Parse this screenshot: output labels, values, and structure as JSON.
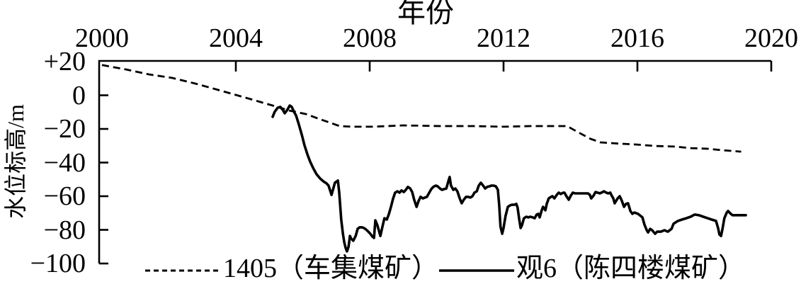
{
  "chart_data": {
    "type": "line",
    "title": "",
    "xlabel": "年份",
    "ylabel": "水位标高/m",
    "xlim": [
      2000,
      2020
    ],
    "ylim": [
      -100,
      20
    ],
    "x_axis_position": "top",
    "grid": false,
    "legend_position": "bottom",
    "x_ticks": [
      2000,
      2004,
      2008,
      2012,
      2016,
      2020
    ],
    "x_tick_labels": [
      "2000",
      "2004",
      "2008",
      "2012",
      "2016",
      "2020"
    ],
    "y_ticks": [
      20,
      0,
      -20,
      -40,
      -60,
      -80,
      -100
    ],
    "y_tick_labels": [
      "+20",
      "0",
      "−20",
      "−40",
      "−60",
      "−80",
      "−100"
    ],
    "series": [
      {
        "name": "1405（车集煤矿）",
        "line_style": "dashed",
        "color": "#000000",
        "points": [
          [
            2000.0,
            18
          ],
          [
            2000.7,
            15.4
          ],
          [
            2001.4,
            12.4
          ],
          [
            2002.1,
            10.3
          ],
          [
            2002.8,
            6.9
          ],
          [
            2003.4,
            3.6
          ],
          [
            2004.0,
            0.2
          ],
          [
            2004.6,
            -3.2
          ],
          [
            2005.1,
            -6.1
          ],
          [
            2005.6,
            -9.1
          ],
          [
            2006.1,
            -11.2
          ],
          [
            2006.5,
            -14.1
          ],
          [
            2006.8,
            -16.2
          ],
          [
            2007.1,
            -18.3
          ],
          [
            2007.5,
            -18.7
          ],
          [
            2008.1,
            -18.7
          ],
          [
            2009.0,
            -17.9
          ],
          [
            2010.1,
            -18.3
          ],
          [
            2011.1,
            -18.3
          ],
          [
            2012.0,
            -18.7
          ],
          [
            2012.8,
            -18.3
          ],
          [
            2013.9,
            -18.3
          ],
          [
            2014.2,
            -21.7
          ],
          [
            2014.6,
            -25.9
          ],
          [
            2014.9,
            -28
          ],
          [
            2015.5,
            -28.8
          ],
          [
            2016.0,
            -29.3
          ],
          [
            2016.5,
            -30.1
          ],
          [
            2017.1,
            -30.5
          ],
          [
            2017.6,
            -31.4
          ],
          [
            2018.1,
            -31.8
          ],
          [
            2018.5,
            -32.6
          ],
          [
            2019.1,
            -33.5
          ]
        ]
      },
      {
        "name": "观6（陈四楼煤矿）",
        "line_style": "solid",
        "color": "#000000",
        "points": [
          [
            2005.1,
            -12.8
          ],
          [
            2005.16,
            -9.9
          ],
          [
            2005.25,
            -7.4
          ],
          [
            2005.33,
            -6.9
          ],
          [
            2005.4,
            -8.6
          ],
          [
            2005.46,
            -10.7
          ],
          [
            2005.54,
            -8.6
          ],
          [
            2005.61,
            -6.1
          ],
          [
            2005.67,
            -6.9
          ],
          [
            2005.74,
            -9.9
          ],
          [
            2005.8,
            -12.0
          ],
          [
            2005.88,
            -17.1
          ],
          [
            2005.97,
            -23.4
          ],
          [
            2006.05,
            -29.7
          ],
          [
            2006.14,
            -35.2
          ],
          [
            2006.22,
            -39.4
          ],
          [
            2006.31,
            -43.2
          ],
          [
            2006.41,
            -46.9
          ],
          [
            2006.52,
            -49.5
          ],
          [
            2006.62,
            -51.2
          ],
          [
            2006.71,
            -52.4
          ],
          [
            2006.77,
            -53.7
          ],
          [
            2006.86,
            -59.2
          ],
          [
            2006.96,
            -52.0
          ],
          [
            2007.05,
            -50.7
          ],
          [
            2007.09,
            -57.9
          ],
          [
            2007.15,
            -73.9
          ],
          [
            2007.2,
            -82.3
          ],
          [
            2007.24,
            -87.4
          ],
          [
            2007.28,
            -90.7
          ],
          [
            2007.32,
            -92.8
          ],
          [
            2007.37,
            -89.9
          ],
          [
            2007.41,
            -83.6
          ],
          [
            2007.45,
            -85.3
          ],
          [
            2007.51,
            -86.5
          ],
          [
            2007.58,
            -83.6
          ],
          [
            2007.64,
            -79.4
          ],
          [
            2007.7,
            -78.5
          ],
          [
            2007.77,
            -78.5
          ],
          [
            2007.83,
            -78.9
          ],
          [
            2007.89,
            -79.8
          ],
          [
            2007.96,
            -81.1
          ],
          [
            2008.02,
            -82.3
          ],
          [
            2008.08,
            -84.0
          ],
          [
            2008.13,
            -84.8
          ],
          [
            2008.17,
            -74.3
          ],
          [
            2008.23,
            -77.3
          ],
          [
            2008.32,
            -83.6
          ],
          [
            2008.38,
            -78.1
          ],
          [
            2008.44,
            -73.1
          ],
          [
            2008.51,
            -73.9
          ],
          [
            2008.57,
            -70.9
          ],
          [
            2008.63,
            -66.7
          ],
          [
            2008.7,
            -61.3
          ],
          [
            2008.76,
            -57.9
          ],
          [
            2008.83,
            -57.1
          ],
          [
            2008.89,
            -57.9
          ],
          [
            2008.95,
            -56.6
          ],
          [
            2009.02,
            -57.5
          ],
          [
            2009.08,
            -56.2
          ],
          [
            2009.14,
            -54.5
          ],
          [
            2009.21,
            -55.4
          ],
          [
            2009.27,
            -57.5
          ],
          [
            2009.33,
            -62.1
          ],
          [
            2009.4,
            -66.3
          ],
          [
            2009.46,
            -62.9
          ],
          [
            2009.52,
            -60.4
          ],
          [
            2009.59,
            -61.3
          ],
          [
            2009.65,
            -60.8
          ],
          [
            2009.71,
            -60.4
          ],
          [
            2009.78,
            -57.9
          ],
          [
            2009.84,
            -55.8
          ],
          [
            2009.9,
            -54.5
          ],
          [
            2009.97,
            -53.7
          ],
          [
            2010.03,
            -54.1
          ],
          [
            2010.1,
            -55.4
          ],
          [
            2010.16,
            -56.2
          ],
          [
            2010.22,
            -55.8
          ],
          [
            2010.29,
            -55.4
          ],
          [
            2010.35,
            -51.2
          ],
          [
            2010.39,
            -48.6
          ],
          [
            2010.43,
            -53.7
          ],
          [
            2010.5,
            -56.2
          ],
          [
            2010.56,
            -55.4
          ],
          [
            2010.62,
            -57.1
          ],
          [
            2010.69,
            -61.3
          ],
          [
            2010.75,
            -64.2
          ],
          [
            2010.81,
            -62.1
          ],
          [
            2010.88,
            -60.4
          ],
          [
            2010.94,
            -60.4
          ],
          [
            2011.01,
            -60.8
          ],
          [
            2011.07,
            -60.0
          ],
          [
            2011.13,
            -57.9
          ],
          [
            2011.2,
            -57.1
          ],
          [
            2011.26,
            -53.7
          ],
          [
            2011.32,
            -52.0
          ],
          [
            2011.39,
            -53.7
          ],
          [
            2011.45,
            -55.4
          ],
          [
            2011.51,
            -54.5
          ],
          [
            2011.58,
            -54.1
          ],
          [
            2011.64,
            -53.7
          ],
          [
            2011.7,
            -53.7
          ],
          [
            2011.77,
            -54.1
          ],
          [
            2011.83,
            -56.2
          ],
          [
            2011.87,
            -65.5
          ],
          [
            2011.91,
            -78.1
          ],
          [
            2011.96,
            -82.3
          ],
          [
            2012.0,
            -78.9
          ],
          [
            2012.06,
            -71.8
          ],
          [
            2012.13,
            -66.3
          ],
          [
            2012.19,
            -65.5
          ],
          [
            2012.25,
            -65.1
          ],
          [
            2012.32,
            -65.1
          ],
          [
            2012.38,
            -64.6
          ],
          [
            2012.42,
            -66.7
          ],
          [
            2012.47,
            -73.9
          ],
          [
            2012.51,
            -78.9
          ],
          [
            2012.55,
            -77.3
          ],
          [
            2012.61,
            -73.1
          ],
          [
            2012.68,
            -72.2
          ],
          [
            2012.74,
            -72.6
          ],
          [
            2012.8,
            -72.2
          ],
          [
            2012.87,
            -72.6
          ],
          [
            2012.93,
            -73.1
          ],
          [
            2012.99,
            -70.9
          ],
          [
            2013.04,
            -70.5
          ],
          [
            2013.08,
            -72.6
          ],
          [
            2013.14,
            -68.4
          ],
          [
            2013.18,
            -66.3
          ],
          [
            2013.25,
            -68.4
          ],
          [
            2013.29,
            -64.6
          ],
          [
            2013.35,
            -61.3
          ],
          [
            2013.42,
            -60.4
          ],
          [
            2013.46,
            -60.0
          ],
          [
            2013.52,
            -61.3
          ],
          [
            2013.59,
            -59.2
          ],
          [
            2013.65,
            -57.9
          ],
          [
            2013.71,
            -58.7
          ],
          [
            2013.78,
            -57.9
          ],
          [
            2013.82,
            -57.9
          ],
          [
            2013.88,
            -60.0
          ],
          [
            2013.95,
            -62.1
          ],
          [
            2014.01,
            -59.6
          ],
          [
            2014.07,
            -57.9
          ],
          [
            2014.14,
            -58.3
          ],
          [
            2014.26,
            -58.3
          ],
          [
            2014.39,
            -58.3
          ],
          [
            2014.52,
            -58.3
          ],
          [
            2014.58,
            -59.2
          ],
          [
            2014.62,
            -61.3
          ],
          [
            2014.69,
            -59.6
          ],
          [
            2014.75,
            -57.5
          ],
          [
            2014.88,
            -58.3
          ],
          [
            2015.0,
            -57.1
          ],
          [
            2015.07,
            -57.9
          ],
          [
            2015.13,
            -58.3
          ],
          [
            2015.19,
            -57.9
          ],
          [
            2015.24,
            -60.0
          ],
          [
            2015.28,
            -61.3
          ],
          [
            2015.32,
            -64.2
          ],
          [
            2015.41,
            -61.3
          ],
          [
            2015.47,
            -60.0
          ],
          [
            2015.53,
            -62.5
          ],
          [
            2015.6,
            -66.3
          ],
          [
            2015.66,
            -64.6
          ],
          [
            2015.72,
            -64.2
          ],
          [
            2015.79,
            -68.8
          ],
          [
            2015.85,
            -70.5
          ],
          [
            2015.91,
            -69.7
          ],
          [
            2016.02,
            -70.5
          ],
          [
            2016.15,
            -72.6
          ],
          [
            2016.21,
            -76.8
          ],
          [
            2016.28,
            -80.2
          ],
          [
            2016.32,
            -81.5
          ],
          [
            2016.38,
            -79.4
          ],
          [
            2016.44,
            -80.2
          ],
          [
            2016.53,
            -82.3
          ],
          [
            2016.59,
            -81.1
          ],
          [
            2016.7,
            -81.1
          ],
          [
            2016.81,
            -80.2
          ],
          [
            2016.91,
            -81.1
          ],
          [
            2017.02,
            -79.4
          ],
          [
            2017.08,
            -76.4
          ],
          [
            2017.21,
            -74.7
          ],
          [
            2017.33,
            -73.9
          ],
          [
            2017.46,
            -73.1
          ],
          [
            2017.59,
            -72.2
          ],
          [
            2017.71,
            -70.9
          ],
          [
            2017.84,
            -71.3
          ],
          [
            2017.97,
            -72.2
          ],
          [
            2018.1,
            -73.1
          ],
          [
            2018.22,
            -73.9
          ],
          [
            2018.35,
            -74.7
          ],
          [
            2018.41,
            -78.9
          ],
          [
            2018.45,
            -82.7
          ],
          [
            2018.5,
            -83.6
          ],
          [
            2018.54,
            -79.8
          ],
          [
            2018.6,
            -73.1
          ],
          [
            2018.67,
            -69.7
          ],
          [
            2018.71,
            -68.8
          ],
          [
            2018.77,
            -70.1
          ],
          [
            2018.84,
            -71.3
          ],
          [
            2018.96,
            -71.3
          ],
          [
            2019.09,
            -71.3
          ],
          [
            2019.24,
            -71.3
          ]
        ]
      }
    ]
  }
}
